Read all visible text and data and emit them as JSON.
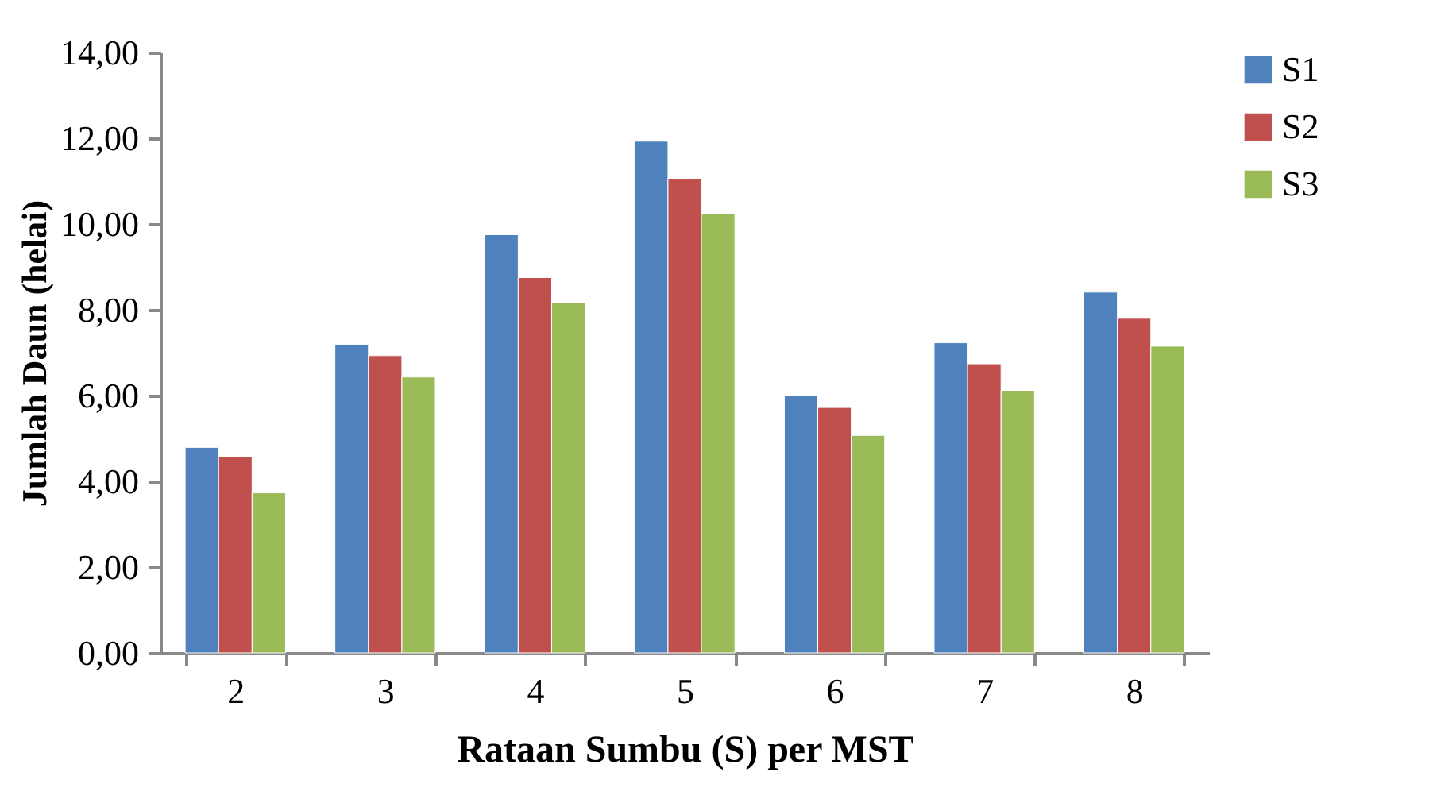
{
  "chart_data": {
    "type": "bar",
    "xlabel": "Rataan Sumbu (S) per MST",
    "ylabel": "Jumlah Daun (helai)",
    "categories": [
      "2",
      "3",
      "4",
      "5",
      "6",
      "7",
      "8"
    ],
    "series": [
      {
        "name": "S1",
        "color": "#4f81bd",
        "values": [
          4.79,
          7.19,
          9.75,
          11.93,
          5.99,
          7.23,
          8.41
        ]
      },
      {
        "name": "S2",
        "color": "#c0504d",
        "values": [
          4.57,
          6.93,
          8.75,
          11.05,
          5.72,
          6.74,
          7.8
        ]
      },
      {
        "name": "S3",
        "color": "#9bbb59",
        "values": [
          3.73,
          6.43,
          8.16,
          10.25,
          5.07,
          6.12,
          7.15
        ]
      }
    ],
    "ylim": [
      0,
      14
    ],
    "yticks": [
      {
        "value": 0,
        "label": "0,00"
      },
      {
        "value": 2,
        "label": "2,00"
      },
      {
        "value": 4,
        "label": "4,00"
      },
      {
        "value": 6,
        "label": "6,00"
      },
      {
        "value": 8,
        "label": "8,00"
      },
      {
        "value": 10,
        "label": "10,00"
      },
      {
        "value": 12,
        "label": "12,00"
      },
      {
        "value": 14,
        "label": "14,00"
      }
    ],
    "grid": false,
    "legend": "right"
  }
}
